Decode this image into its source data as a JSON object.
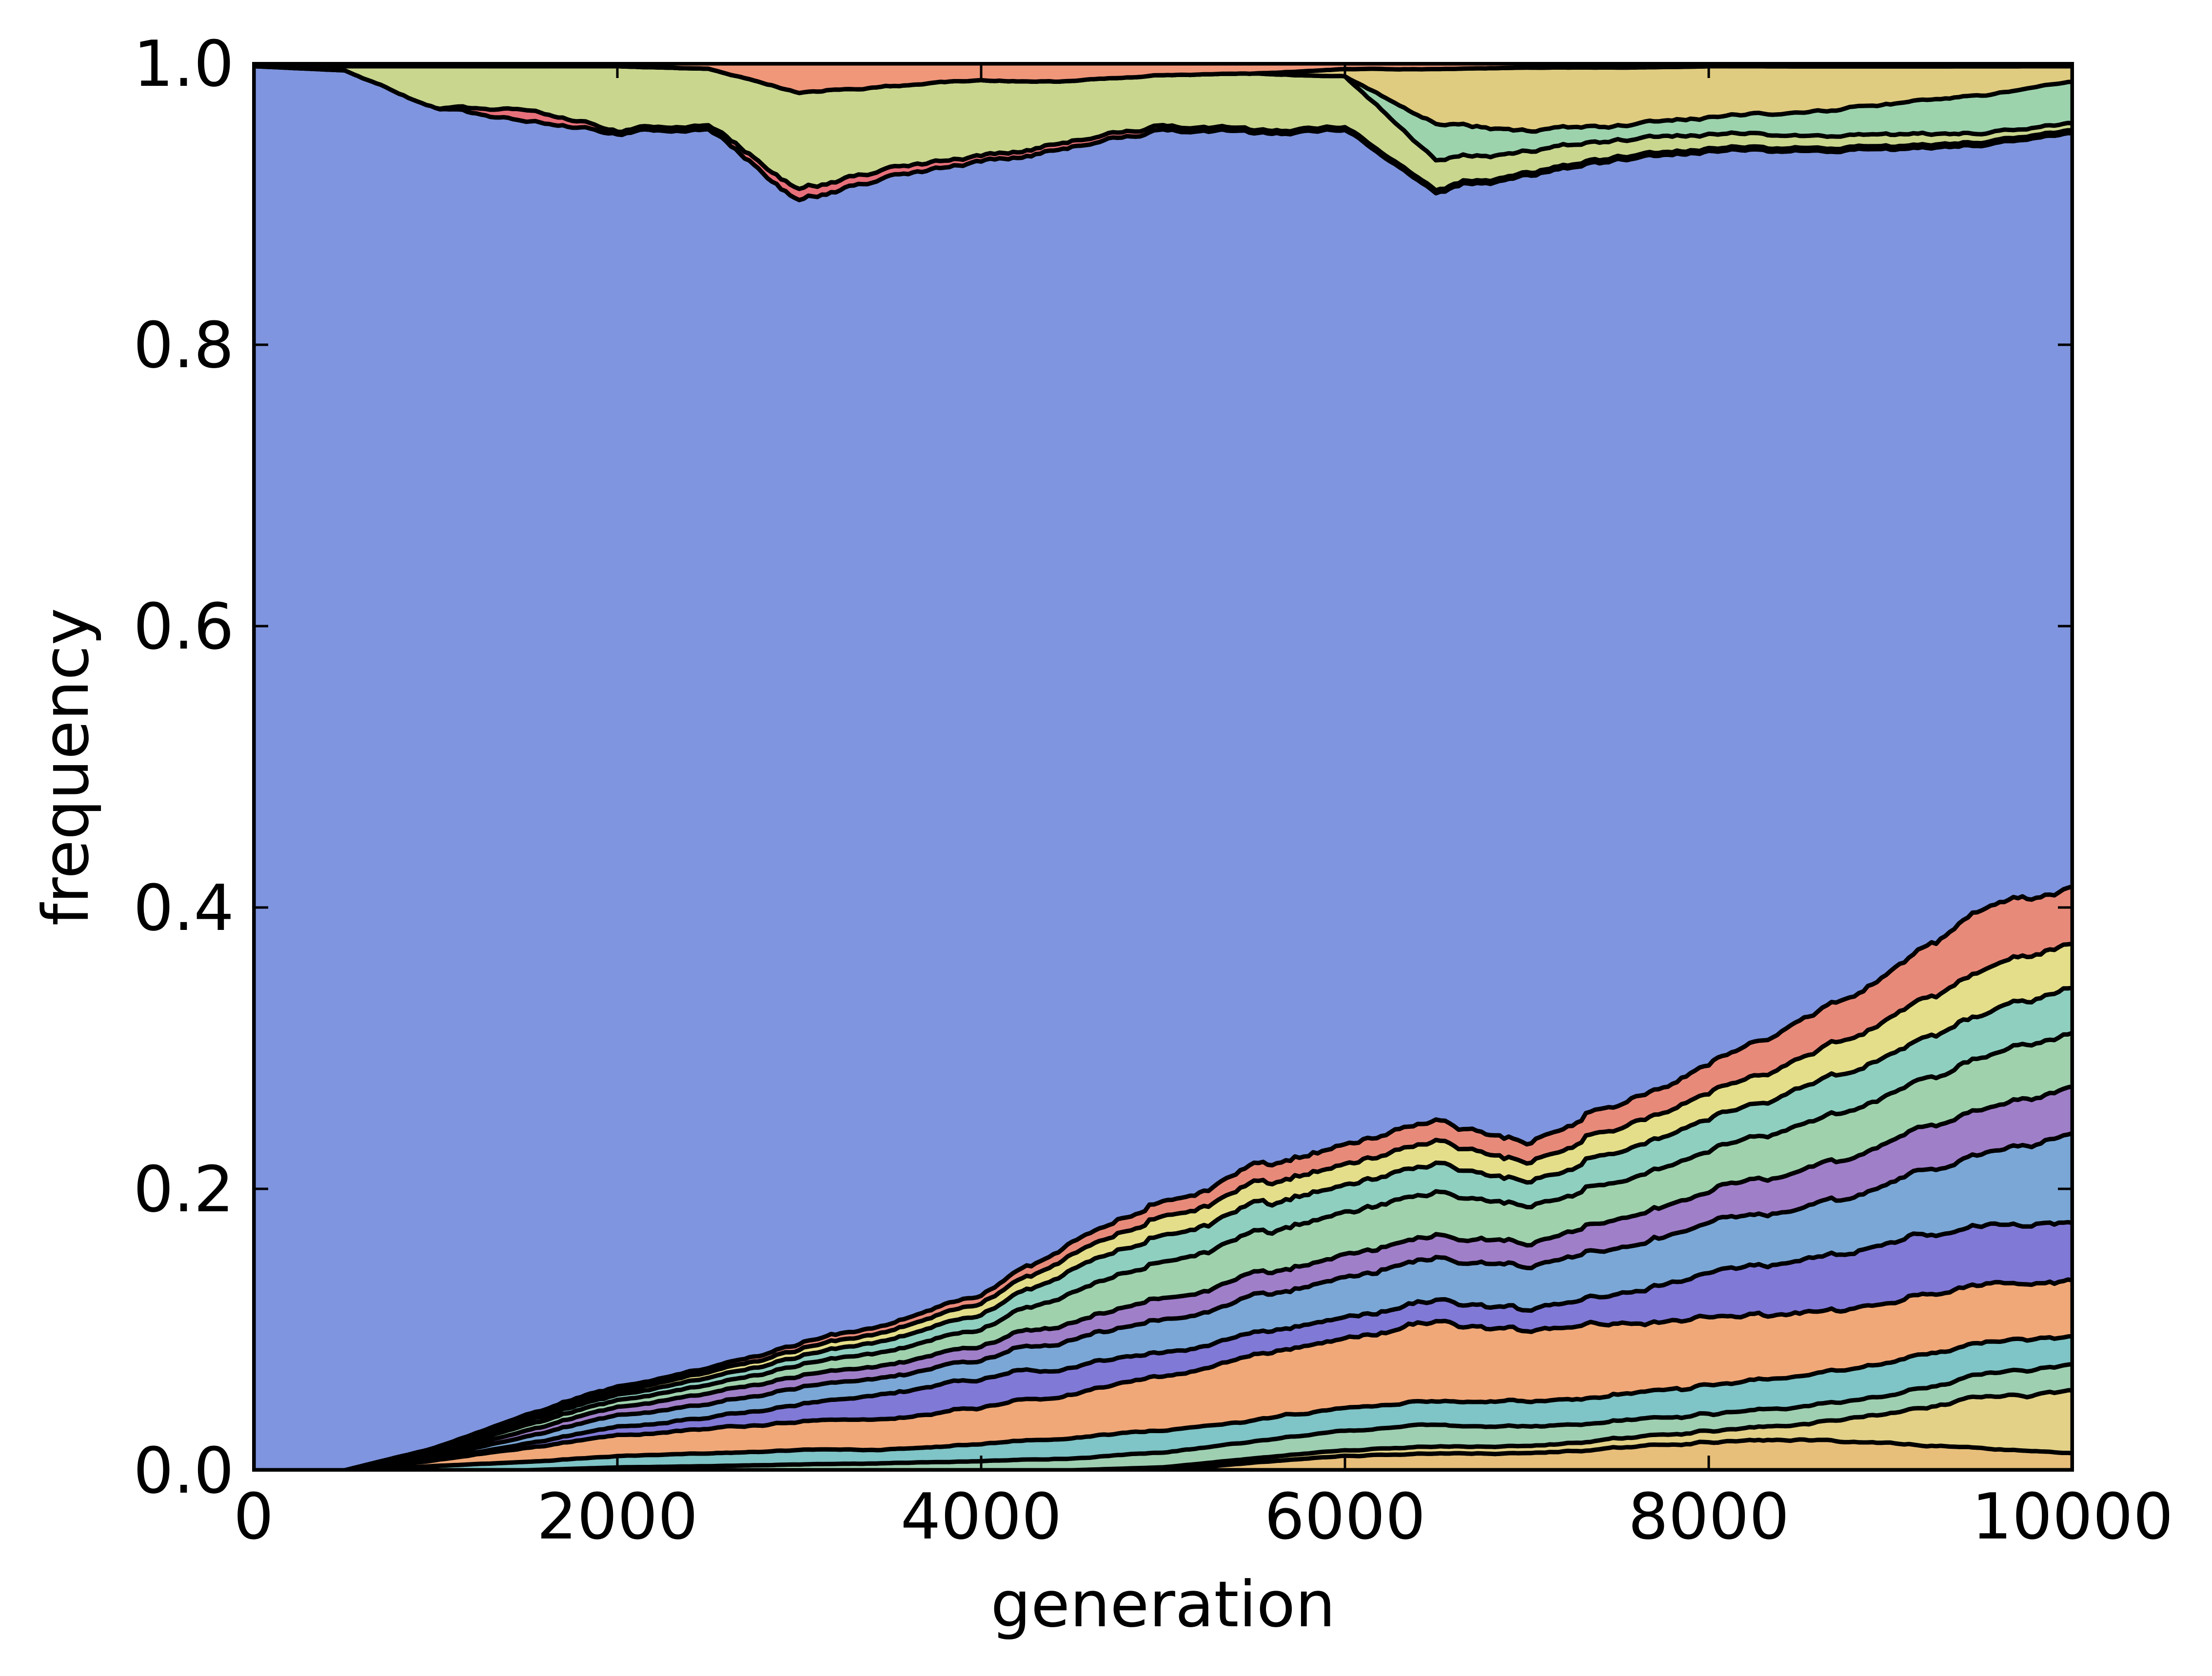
{
  "chart_data": {
    "type": "area",
    "stacked": true,
    "title": "",
    "xlabel": "generation",
    "ylabel": "frequency",
    "xlim": [
      0,
      10000
    ],
    "ylim": [
      0.0,
      1.0
    ],
    "xticks": [
      "0",
      "2000",
      "4000",
      "6000",
      "8000",
      "10000"
    ],
    "yticks": [
      "0.0",
      "0.2",
      "0.4",
      "0.6",
      "0.8",
      "1.0"
    ],
    "grid": false,
    "legend": "none",
    "line_color": "#000000",
    "x": [
      0,
      500,
      1000,
      1500,
      2000,
      2500,
      3000,
      3500,
      4000,
      4500,
      5000,
      5500,
      6000,
      6500,
      7000,
      7500,
      8000,
      8500,
      9000,
      9500,
      10000
    ],
    "series": [
      {
        "color": "#e8bf7a",
        "values": [
          0,
          0,
          0,
          0,
          0,
          0,
          0,
          0,
          0,
          0,
          0,
          0.005,
          0.01,
          0.012,
          0.012,
          0.015,
          0.02,
          0.02,
          0.018,
          0.015,
          0.012
        ]
      },
      {
        "color": "#e2d187",
        "values": [
          0,
          0,
          0,
          0,
          0,
          0,
          0,
          0,
          0,
          0,
          0.002,
          0.003,
          0.004,
          0.005,
          0.005,
          0.006,
          0.008,
          0.01,
          0.02,
          0.035,
          0.04
        ]
      },
      {
        "color": "#9ecfb1",
        "values": [
          0,
          0,
          0,
          0,
          0.002,
          0.003,
          0.004,
          0.005,
          0.006,
          0.008,
          0.01,
          0.012,
          0.014,
          0.015,
          0.014,
          0.012,
          0.012,
          0.012,
          0.012,
          0.015,
          0.018
        ]
      },
      {
        "color": "#7fc4c6",
        "values": [
          0,
          0,
          0.003,
          0.006,
          0.008,
          0.009,
          0.01,
          0.01,
          0.012,
          0.014,
          0.015,
          0.015,
          0.016,
          0.017,
          0.018,
          0.018,
          0.02,
          0.02,
          0.021,
          0.022,
          0.02
        ]
      },
      {
        "color": "#f0a878",
        "values": [
          0,
          0,
          0.004,
          0.01,
          0.015,
          0.018,
          0.02,
          0.022,
          0.025,
          0.03,
          0.035,
          0.045,
          0.05,
          0.055,
          0.05,
          0.05,
          0.045,
          0.042,
          0.04,
          0.04,
          0.038
        ]
      },
      {
        "color": "#8079d6",
        "values": [
          0,
          0,
          0,
          0.003,
          0.006,
          0.008,
          0.012,
          0.018,
          0.02,
          0.018,
          0.016,
          0.015,
          0.015,
          0.015,
          0.015,
          0.02,
          0.03,
          0.035,
          0.04,
          0.04,
          0.04
        ]
      },
      {
        "color": "#7ba7d6",
        "values": [
          0,
          0,
          0.002,
          0.005,
          0.008,
          0.01,
          0.012,
          0.012,
          0.014,
          0.018,
          0.022,
          0.025,
          0.028,
          0.03,
          0.03,
          0.032,
          0.034,
          0.036,
          0.04,
          0.05,
          0.06
        ]
      },
      {
        "color": "#a07fc9",
        "values": [
          0,
          0,
          0.002,
          0.004,
          0.006,
          0.008,
          0.008,
          0.009,
          0.01,
          0.012,
          0.014,
          0.015,
          0.016,
          0.016,
          0.016,
          0.02,
          0.022,
          0.025,
          0.028,
          0.03,
          0.032
        ]
      },
      {
        "color": "#9fd1ad",
        "values": [
          0,
          0,
          0.002,
          0.004,
          0.005,
          0.006,
          0.008,
          0.01,
          0.012,
          0.02,
          0.025,
          0.028,
          0.03,
          0.03,
          0.026,
          0.026,
          0.028,
          0.03,
          0.032,
          0.035,
          0.036
        ]
      },
      {
        "color": "#8fcfc0",
        "values": [
          0,
          0,
          0.001,
          0.003,
          0.004,
          0.005,
          0.006,
          0.008,
          0.01,
          0.015,
          0.018,
          0.02,
          0.02,
          0.02,
          0.018,
          0.02,
          0.022,
          0.024,
          0.026,
          0.03,
          0.032
        ]
      },
      {
        "color": "#e4de8a",
        "values": [
          0,
          0,
          0.001,
          0.002,
          0.003,
          0.004,
          0.005,
          0.006,
          0.008,
          0.01,
          0.012,
          0.014,
          0.015,
          0.016,
          0.014,
          0.016,
          0.018,
          0.02,
          0.024,
          0.03,
          0.03
        ]
      },
      {
        "color": "#e88a7a",
        "values": [
          0,
          0,
          0.001,
          0.002,
          0.003,
          0.003,
          0.004,
          0.005,
          0.006,
          0.008,
          0.01,
          0.012,
          0.014,
          0.015,
          0.014,
          0.016,
          0.02,
          0.025,
          0.03,
          0.04,
          0.038
        ]
      },
      {
        "color": "#7f95df",
        "values": [
          0.998,
          0.995,
          0.95,
          0.9,
          0.895,
          0.9,
          0.81,
          0.82,
          0.8,
          0.73,
          0.735,
          0.7,
          0.71,
          0.66,
          0.69,
          0.65,
          0.63,
          0.575,
          0.545,
          0.51,
          0.52
        ]
      },
      {
        "color": "#e7707a",
        "values": [
          0,
          0,
          0,
          0.008,
          0.002,
          0.003,
          0.008,
          0.006,
          0.004,
          0.004,
          0.003,
          0.002,
          0.002,
          0.002,
          0.002,
          0.002,
          0.002,
          0.002,
          0.002,
          0.002,
          0.002
        ]
      },
      {
        "color": "#c9d68e",
        "values": [
          0,
          0.003,
          0.03,
          0.03,
          0.045,
          0.04,
          0.07,
          0.06,
          0.055,
          0.04,
          0.035,
          0.04,
          0.035,
          0.02,
          0.015,
          0.012,
          0.01,
          0.008,
          0.008,
          0.006,
          0.005
        ]
      },
      {
        "color": "#9cd3ad",
        "values": [
          0,
          0,
          0,
          0,
          0,
          0,
          0,
          0,
          0,
          0,
          0,
          0,
          0,
          0.025,
          0.015,
          0.01,
          0.012,
          0.015,
          0.02,
          0.025,
          0.03
        ]
      },
      {
        "color": "#e0cc80",
        "values": [
          0,
          0,
          0,
          0,
          0,
          0,
          0,
          0,
          0,
          0,
          0,
          0,
          0.005,
          0.04,
          0.045,
          0.04,
          0.035,
          0.03,
          0.025,
          0.02,
          0.01
        ]
      },
      {
        "color": "#f0977a",
        "values": [
          0.002,
          0.002,
          0.002,
          0.002,
          0.002,
          0.004,
          0.02,
          0.016,
          0.012,
          0.012,
          0.008,
          0.007,
          0.004,
          0.004,
          0.003,
          0.003,
          0.002,
          0.002,
          0.002,
          0.002,
          0.002
        ]
      }
    ]
  }
}
